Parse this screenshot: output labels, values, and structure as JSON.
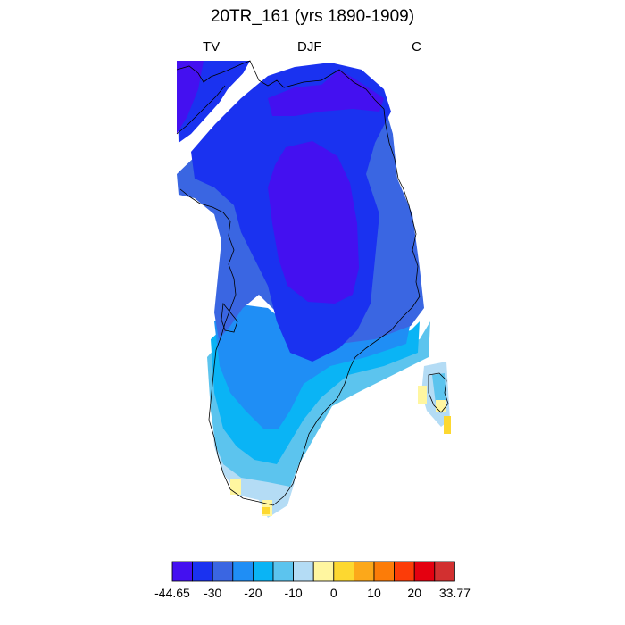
{
  "title": "20TR_161 (yrs 1890-1909)",
  "labels": {
    "left": "TV",
    "center": "DJF",
    "right": "C"
  },
  "colorbar": {
    "colors": [
      "#4410f0",
      "#1a32f0",
      "#3a66e2",
      "#1f8ef5",
      "#0ab4f5",
      "#5cc4ee",
      "#b4dcf5",
      "#fff6a0",
      "#fdd830",
      "#fca81a",
      "#fc7c08",
      "#fc3c08",
      "#e40010",
      "#d23030"
    ],
    "tick_labels": [
      "-44.65",
      "-30",
      "-20",
      "-10",
      "0",
      "10",
      "20",
      "33.77"
    ]
  },
  "map_legend_levels": [
    {
      "name": "darkest-core",
      "color": "#4410f0"
    },
    {
      "name": "deep-blue",
      "color": "#1a32f0"
    },
    {
      "name": "royal-blue",
      "color": "#3a66e2"
    },
    {
      "name": "medium-blue",
      "color": "#1f8ef5"
    },
    {
      "name": "cyan",
      "color": "#0ab4f5"
    },
    {
      "name": "light-cyan",
      "color": "#5cc4ee"
    },
    {
      "name": "pale-blue",
      "color": "#b4dcf5"
    },
    {
      "name": "pale-yellow",
      "color": "#fff6a0"
    },
    {
      "name": "yellow",
      "color": "#fdd830"
    }
  ]
}
